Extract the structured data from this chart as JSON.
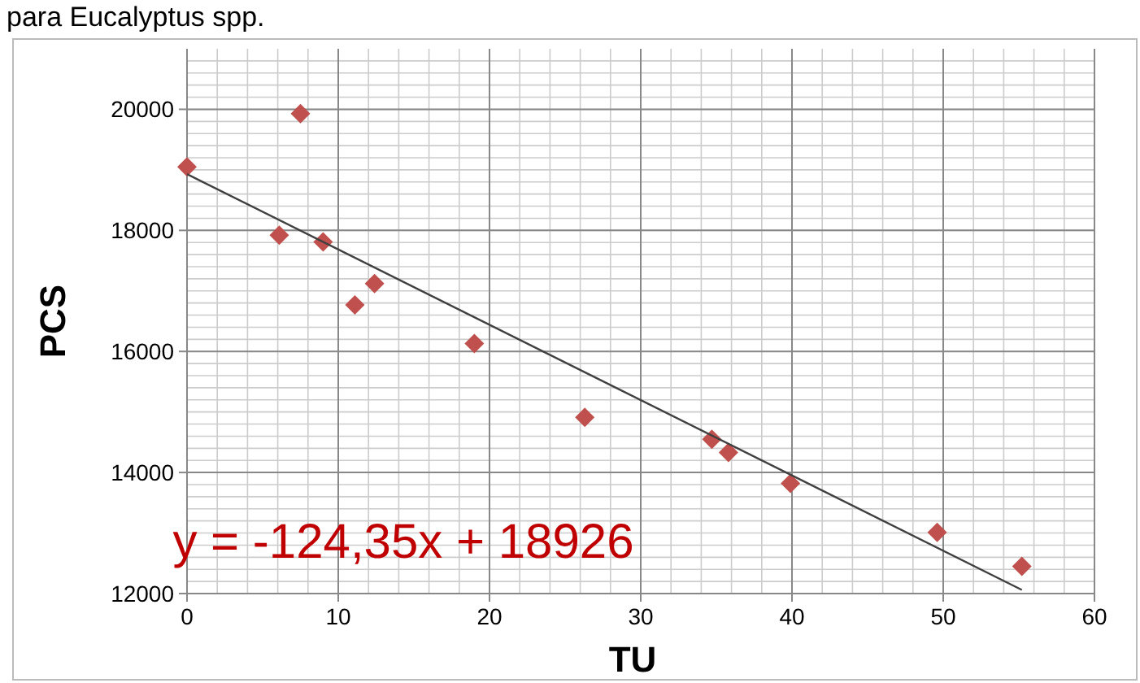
{
  "chart_data": {
    "type": "scatter",
    "title": "para Eucalyptus spp.",
    "xlabel": "TU",
    "ylabel": "PCS",
    "xlim": [
      0,
      60
    ],
    "xticks": [
      0,
      10,
      20,
      30,
      40,
      50,
      60
    ],
    "ylim": [
      12000,
      21000
    ],
    "yticks": [
      12000,
      14000,
      16000,
      18000,
      20000
    ],
    "grid": true,
    "series": [
      {
        "marker": "diamond",
        "color": "#c0504d",
        "x": [
          0,
          7.5,
          6.1,
          9,
          11.1,
          12.4,
          19,
          26.3,
          34.7,
          35.8,
          39.9,
          49.6,
          55.2
        ],
        "values": [
          19050,
          19930,
          17920,
          17810,
          16770,
          17120,
          16130,
          14910,
          14550,
          14330,
          13820,
          13010,
          12450
        ]
      },
      {
        "type": "line",
        "color": "#404040",
        "x": [
          0,
          55.2
        ],
        "values": [
          18930,
          12060
        ]
      }
    ],
    "annotations": [
      "y = -124,35x + 18926"
    ]
  }
}
